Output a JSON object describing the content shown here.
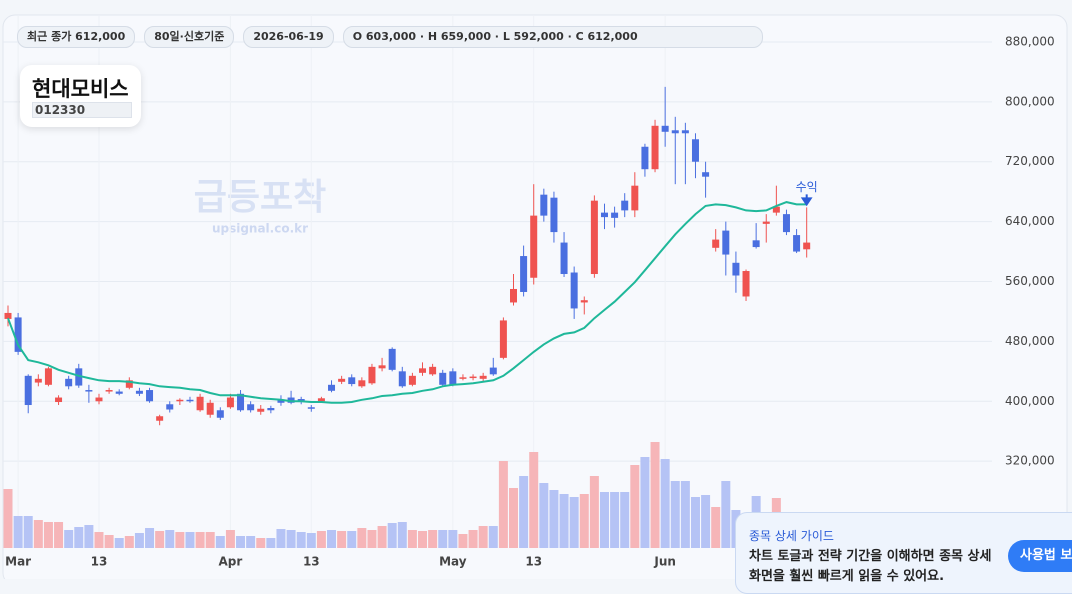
{
  "header": {
    "close_pill": "최근 종가 612,000",
    "period_pill": "80일·신호기준",
    "date_pill": "2026-06-19",
    "ohlc_pill": "O 603,000 · H 659,000 · L 592,000 · C 612,000"
  },
  "stock": {
    "name": "현대모비스",
    "code": "012330"
  },
  "watermark": {
    "title": "급등포착",
    "url": "upsignal.co.kr"
  },
  "chart_data": {
    "type": "candlestick",
    "categories": [
      null,
      "Mar",
      null,
      null,
      null,
      null,
      null,
      null,
      null,
      "13",
      null,
      null,
      null,
      null,
      null,
      null,
      null,
      null,
      null,
      null,
      null,
      null,
      "Apr",
      null,
      null,
      null,
      null,
      null,
      null,
      null,
      "13",
      null,
      null,
      null,
      null,
      null,
      null,
      null,
      null,
      null,
      null,
      null,
      null,
      null,
      "May",
      null,
      null,
      null,
      null,
      null,
      null,
      null,
      "13",
      null,
      null,
      null,
      null,
      null,
      null,
      null,
      null,
      null,
      null,
      null,
      null,
      "Jun",
      null,
      null,
      null,
      null,
      null,
      null,
      null,
      null,
      null,
      null,
      null,
      null,
      null,
      null
    ],
    "open": [
      510000,
      512000,
      434000,
      425000,
      422000,
      399000,
      430000,
      444000,
      415000,
      400000,
      413000,
      413000,
      418000,
      414000,
      415000,
      374000,
      396000,
      400000,
      402000,
      388000,
      382000,
      388000,
      392000,
      410000,
      396000,
      386000,
      391000,
      402000,
      405000,
      403000,
      392000,
      400000,
      422000,
      426000,
      432000,
      420000,
      424000,
      444000,
      470000,
      440000,
      422000,
      438000,
      436000,
      438000,
      440000,
      430000,
      431000,
      430000,
      445000,
      458000,
      532000,
      594000,
      565000,
      676000,
      672000,
      612000,
      572000,
      532000,
      570000,
      652000,
      652000,
      668000,
      655000,
      740000,
      710000,
      768000,
      762000,
      762000,
      750000,
      706000,
      605000,
      628000,
      585000,
      540000,
      615000,
      637000,
      652000,
      650000,
      622000,
      603000
    ],
    "high": [
      528000,
      518000,
      436000,
      436000,
      446000,
      408000,
      434000,
      450000,
      422000,
      410000,
      418000,
      416000,
      432000,
      418000,
      418000,
      382000,
      400000,
      404000,
      406000,
      410000,
      402000,
      392000,
      410000,
      415000,
      400000,
      395000,
      394000,
      408000,
      414000,
      406000,
      395000,
      406000,
      428000,
      434000,
      436000,
      432000,
      450000,
      458000,
      472000,
      446000,
      438000,
      452000,
      450000,
      442000,
      444000,
      436000,
      436000,
      438000,
      458000,
      512000,
      570000,
      608000,
      690000,
      684000,
      680000,
      626000,
      580000,
      540000,
      675000,
      664000,
      660000,
      678000,
      706000,
      744000,
      776000,
      820000,
      780000,
      772000,
      758000,
      720000,
      630000,
      640000,
      600000,
      576000,
      638000,
      650000,
      688000,
      656000,
      630000,
      659000
    ],
    "low": [
      500000,
      462000,
      384000,
      420000,
      420000,
      395000,
      416000,
      418000,
      398000,
      396000,
      410000,
      408000,
      416000,
      407000,
      398000,
      368000,
      385000,
      395000,
      398000,
      386000,
      378000,
      375000,
      390000,
      386000,
      385000,
      382000,
      384000,
      394000,
      396000,
      396000,
      386000,
      398000,
      412000,
      423000,
      420000,
      418000,
      422000,
      440000,
      440000,
      418000,
      420000,
      434000,
      434000,
      420000,
      420000,
      428000,
      428000,
      426000,
      434000,
      456000,
      528000,
      540000,
      556000,
      640000,
      612000,
      566000,
      510000,
      516000,
      565000,
      630000,
      632000,
      646000,
      646000,
      700000,
      706000,
      740000,
      690000,
      690000,
      698000,
      672000,
      600000,
      568000,
      545000,
      534000,
      604000,
      612000,
      648000,
      622000,
      598000,
      592000
    ],
    "close": [
      518000,
      466000,
      395000,
      430000,
      444000,
      405000,
      420000,
      421000,
      414000,
      405000,
      415000,
      410000,
      428000,
      410000,
      400000,
      380000,
      389000,
      402000,
      400000,
      406000,
      398000,
      378000,
      405000,
      388000,
      388000,
      390000,
      388000,
      398000,
      398000,
      399000,
      390000,
      404000,
      414000,
      430000,
      423000,
      428000,
      446000,
      448000,
      442000,
      420000,
      434000,
      444000,
      446000,
      422000,
      422000,
      432000,
      433000,
      434000,
      436000,
      508000,
      550000,
      546000,
      648000,
      648000,
      626000,
      570000,
      524000,
      535000,
      668000,
      646000,
      645000,
      655000,
      688000,
      710000,
      768000,
      760000,
      758000,
      758000,
      720000,
      700000,
      616000,
      596000,
      568000,
      574000,
      606000,
      640000,
      660000,
      626000,
      600000,
      612000
    ],
    "up_color": "#ef5350",
    "down_color": "#4a6fe0",
    "up_volume_color": "#f6b5b8",
    "down_volume_color": "#b5c3f5",
    "ma": [
      511000,
      475000,
      455000,
      452000,
      448000,
      442000,
      438000,
      434000,
      431000,
      428000,
      427000,
      427000,
      426000,
      424000,
      423000,
      420000,
      419000,
      418000,
      416000,
      415000,
      411000,
      408000,
      408000,
      408000,
      406000,
      404000,
      403000,
      402000,
      400000,
      400000,
      399000,
      399000,
      398000,
      398000,
      399000,
      402000,
      404000,
      407000,
      408000,
      410000,
      411000,
      414000,
      416000,
      420000,
      422000,
      423000,
      424000,
      426000,
      428000,
      434000,
      444000,
      455000,
      466000,
      476000,
      484000,
      490000,
      492000,
      498000,
      511000,
      522000,
      533000,
      546000,
      559000,
      575000,
      591000,
      607000,
      623000,
      637000,
      650000,
      661000,
      663000,
      662000,
      659000,
      655000,
      654000,
      655000,
      661000,
      666000,
      663000,
      663000
    ],
    "ma_color": "#1fb89a",
    "volume": [
      59,
      32,
      32,
      28,
      26,
      26,
      18,
      21,
      23,
      16,
      13,
      10,
      12,
      15,
      20,
      17,
      18,
      16,
      16,
      16,
      16,
      12,
      18,
      12,
      12,
      10,
      10,
      19,
      18,
      16,
      15,
      17,
      18,
      17,
      17,
      20,
      18,
      22,
      25,
      26,
      18,
      17,
      18,
      18,
      18,
      14,
      18,
      22,
      22,
      87,
      60,
      72,
      96,
      65,
      58,
      54,
      51,
      54,
      72,
      56,
      56,
      56,
      83,
      91,
      106,
      89,
      67,
      67,
      51,
      53,
      41,
      67,
      38,
      28,
      52,
      18,
      50,
      28,
      23,
      23
    ],
    "volume_lim": [
      0,
      110
    ],
    "ylim": [
      204000,
      916000
    ],
    "yticks": [
      {
        "value": 320000,
        "label": "320,000"
      },
      {
        "value": 400000,
        "label": "400,000"
      },
      {
        "value": 480000,
        "label": "480,000"
      },
      {
        "value": 560000,
        "label": "560,000"
      },
      {
        "value": 640000,
        "label": "640,000"
      },
      {
        "value": 720000,
        "label": "720,000"
      },
      {
        "value": 800000,
        "label": "800,000"
      },
      {
        "value": 880000,
        "label": "880,000"
      }
    ],
    "annotation": "수익",
    "grid": true
  },
  "guide": {
    "title": "종목 상세 가이드",
    "lines": [
      "차트 토글과 전략 기간을 이해하면 종목 상세",
      "화면을 훨씬 빠르게 읽을 수 있어요."
    ],
    "button": "사용법 보기"
  }
}
